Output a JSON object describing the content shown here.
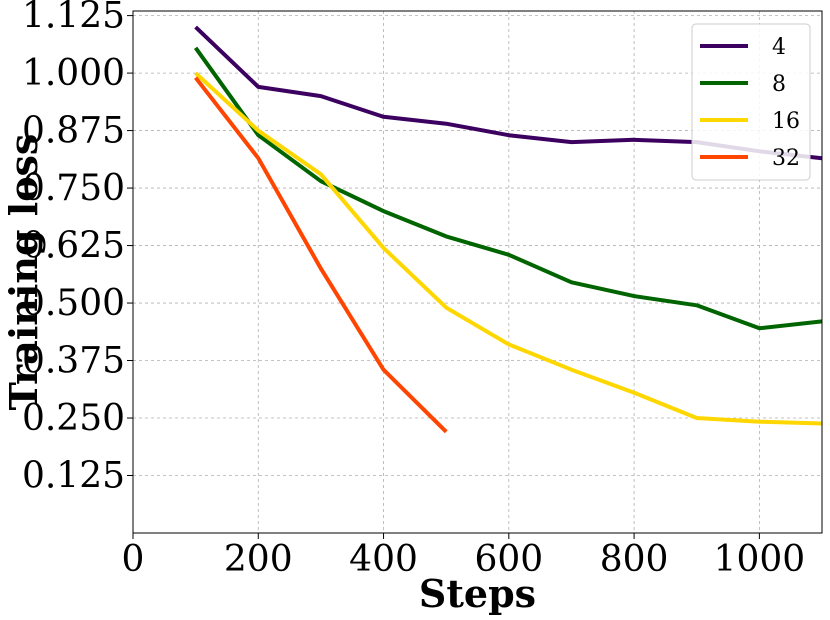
{
  "chart_data": {
    "type": "line",
    "xlabel": "Steps",
    "ylabel": "Training loss",
    "xlim": [
      0,
      1100
    ],
    "ylim": [
      0.0,
      1.135
    ],
    "xticks": [
      0,
      200,
      400,
      600,
      800,
      1000
    ],
    "xtick_labels": [
      "0",
      "200",
      "400",
      "600",
      "800",
      "1000"
    ],
    "yticks": [
      0.125,
      0.25,
      0.375,
      0.5,
      0.625,
      0.75,
      0.875,
      1.0,
      1.125
    ],
    "ytick_labels": [
      "0.125",
      "0.250",
      "0.375",
      "0.500",
      "0.625",
      "0.750",
      "0.875",
      "1.000",
      "1.125"
    ],
    "grid": true,
    "legend_position": "top-right",
    "series": [
      {
        "name": "4",
        "color": "#3b0060",
        "x": [
          100,
          200,
          300,
          400,
          500,
          600,
          700,
          800,
          900,
          1000,
          1100
        ],
        "y": [
          1.1,
          0.97,
          0.95,
          0.905,
          0.89,
          0.865,
          0.85,
          0.855,
          0.85,
          0.83,
          0.815
        ]
      },
      {
        "name": "8",
        "color": "#006400",
        "x": [
          100,
          200,
          300,
          400,
          500,
          600,
          700,
          800,
          900,
          1000,
          1100
        ],
        "y": [
          1.055,
          0.865,
          0.765,
          0.7,
          0.645,
          0.605,
          0.545,
          0.515,
          0.495,
          0.445,
          0.46
        ]
      },
      {
        "name": "16",
        "color": "#ffd700",
        "x": [
          100,
          200,
          300,
          400,
          500,
          600,
          700,
          800,
          900,
          1000,
          1100
        ],
        "y": [
          1.0,
          0.875,
          0.78,
          0.62,
          0.49,
          0.41,
          0.355,
          0.305,
          0.25,
          0.242,
          0.238
        ]
      },
      {
        "name": "32",
        "color": "#ff4500",
        "x": [
          100,
          200,
          300,
          400,
          500
        ],
        "y": [
          0.99,
          0.815,
          0.575,
          0.355,
          0.22
        ]
      }
    ]
  }
}
